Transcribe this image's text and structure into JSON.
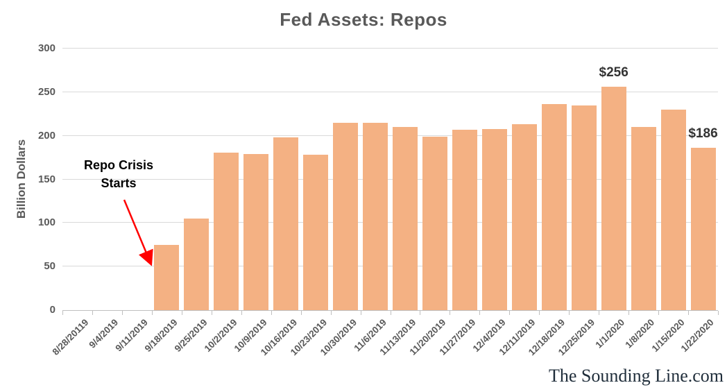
{
  "chart_data": {
    "type": "bar",
    "title": "Fed Assets: Repos",
    "xlabel": "",
    "ylabel": "Billion Dollars",
    "ylim": [
      0,
      300
    ],
    "yticks": [
      0,
      50,
      100,
      150,
      200,
      250,
      300
    ],
    "grid": true,
    "legend": false,
    "categories": [
      "8/28/20119",
      "9/4/2019",
      "9/11/2019",
      "9/18/2019",
      "9/25/2019",
      "10/2/2019",
      "10/9/2019",
      "10/16/2019",
      "10/23/2019",
      "10/30/2019",
      "11/6/2019",
      "11/13/2019",
      "11/20/2019",
      "11/27/2019",
      "12/4/2019",
      "12/11/2019",
      "12/18/2019",
      "12/25/2019",
      "1/1/2020",
      "1/8/2020",
      "1/15/2020",
      "1/22/2020"
    ],
    "values": [
      0,
      0,
      0,
      75,
      105,
      181,
      179,
      198,
      178,
      215,
      215,
      210,
      199,
      207,
      208,
      213,
      236,
      235,
      256,
      210,
      230,
      186
    ],
    "data_labels": [
      {
        "index": 18,
        "text": "$256"
      },
      {
        "index": 21,
        "text": "$186"
      }
    ],
    "annotation": {
      "line1": "Repo Crisis",
      "line2": "Starts",
      "arrow_from": [
        179,
        288
      ],
      "arrow_to": [
        217,
        379
      ]
    }
  },
  "colors": {
    "bar_fill": "#F4B183",
    "gridline": "#D9D9D9",
    "axis_line": "#BFBFBF",
    "title_text": "#595959",
    "axis_text": "#595959",
    "annotation_text": "#000000",
    "arrow": "#FF0000",
    "data_label_text": "#333333",
    "watermark_text": "#1F2D3A"
  },
  "watermark": "The Sounding Line.com"
}
